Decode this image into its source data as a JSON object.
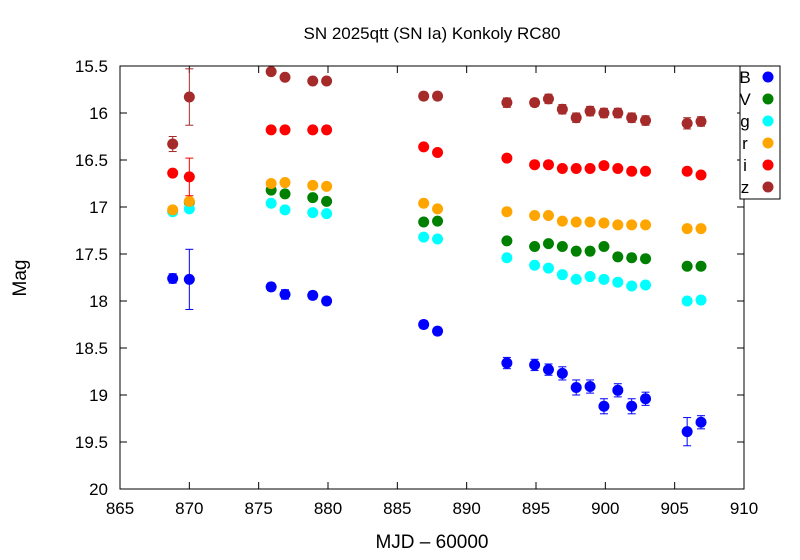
{
  "chart_data": {
    "type": "scatter",
    "title": "SN 2025qtt (SN Ia) Konkoly RC80",
    "xlabel": "MJD – 60000",
    "ylabel": "Mag",
    "xlim": [
      865,
      910
    ],
    "ylim": [
      15.5,
      20
    ],
    "y_inverted": true,
    "grid": false,
    "legend_position": "right",
    "x_ticks": [
      865,
      870,
      875,
      880,
      885,
      890,
      895,
      900,
      905,
      910
    ],
    "x_tick_labels": [
      "865",
      "870",
      "875",
      "880",
      "885",
      "890",
      "895",
      "900",
      "905",
      "910"
    ],
    "y_ticks": [
      15.5,
      16,
      16.5,
      17,
      17.5,
      18,
      18.5,
      19,
      19.5,
      20
    ],
    "y_tick_labels": [
      "15.5",
      "16",
      "16.5",
      "17",
      "17.5",
      "18",
      "18.5",
      "19",
      "19.5",
      "20"
    ],
    "series": [
      {
        "name": "B",
        "color": "#0000ff",
        "points": [
          {
            "x": 868.8,
            "y": 17.76,
            "err": 0.05
          },
          {
            "x": 870.0,
            "y": 17.77,
            "err": 0.32
          },
          {
            "x": 875.9,
            "y": 17.85,
            "err": 0.04
          },
          {
            "x": 876.9,
            "y": 17.93,
            "err": 0.05
          },
          {
            "x": 878.9,
            "y": 17.94,
            "err": 0.04
          },
          {
            "x": 879.9,
            "y": 18.0,
            "err": 0.04
          },
          {
            "x": 886.9,
            "y": 18.25,
            "err": 0.04
          },
          {
            "x": 887.9,
            "y": 18.32,
            "err": 0.04
          },
          {
            "x": 892.9,
            "y": 18.66,
            "err": 0.06
          },
          {
            "x": 894.9,
            "y": 18.68,
            "err": 0.06
          },
          {
            "x": 895.9,
            "y": 18.73,
            "err": 0.06
          },
          {
            "x": 896.9,
            "y": 18.77,
            "err": 0.07
          },
          {
            "x": 897.9,
            "y": 18.92,
            "err": 0.08
          },
          {
            "x": 898.9,
            "y": 18.91,
            "err": 0.07
          },
          {
            "x": 899.9,
            "y": 19.12,
            "err": 0.08
          },
          {
            "x": 900.9,
            "y": 18.95,
            "err": 0.07
          },
          {
            "x": 901.9,
            "y": 19.12,
            "err": 0.08
          },
          {
            "x": 902.9,
            "y": 19.04,
            "err": 0.07
          },
          {
            "x": 905.9,
            "y": 19.39,
            "err": 0.15
          },
          {
            "x": 906.9,
            "y": 19.29,
            "err": 0.07
          }
        ]
      },
      {
        "name": "V",
        "color": "#008000",
        "points": [
          {
            "x": 870.0,
            "y": 16.95,
            "err": 0.03
          },
          {
            "x": 875.9,
            "y": 16.82,
            "err": 0.02
          },
          {
            "x": 876.9,
            "y": 16.86,
            "err": 0.02
          },
          {
            "x": 878.9,
            "y": 16.9,
            "err": 0.02
          },
          {
            "x": 879.9,
            "y": 16.94,
            "err": 0.02
          },
          {
            "x": 886.9,
            "y": 17.16,
            "err": 0.02
          },
          {
            "x": 887.9,
            "y": 17.15,
            "err": 0.02
          },
          {
            "x": 892.9,
            "y": 17.36,
            "err": 0.02
          },
          {
            "x": 894.9,
            "y": 17.42,
            "err": 0.02
          },
          {
            "x": 895.9,
            "y": 17.39,
            "err": 0.02
          },
          {
            "x": 896.9,
            "y": 17.42,
            "err": 0.02
          },
          {
            "x": 897.9,
            "y": 17.47,
            "err": 0.02
          },
          {
            "x": 898.9,
            "y": 17.47,
            "err": 0.02
          },
          {
            "x": 899.9,
            "y": 17.42,
            "err": 0.02
          },
          {
            "x": 900.9,
            "y": 17.53,
            "err": 0.02
          },
          {
            "x": 901.9,
            "y": 17.54,
            "err": 0.02
          },
          {
            "x": 902.9,
            "y": 17.55,
            "err": 0.02
          },
          {
            "x": 905.9,
            "y": 17.63,
            "err": 0.03
          },
          {
            "x": 906.9,
            "y": 17.63,
            "err": 0.03
          }
        ]
      },
      {
        "name": "g",
        "color": "#00ffff",
        "points": [
          {
            "x": 868.8,
            "y": 17.05,
            "err": 0.02
          },
          {
            "x": 870.0,
            "y": 17.02,
            "err": 0.03
          },
          {
            "x": 875.9,
            "y": 16.96,
            "err": 0.02
          },
          {
            "x": 876.9,
            "y": 17.03,
            "err": 0.02
          },
          {
            "x": 878.9,
            "y": 17.06,
            "err": 0.02
          },
          {
            "x": 879.9,
            "y": 17.07,
            "err": 0.02
          },
          {
            "x": 886.9,
            "y": 17.32,
            "err": 0.02
          },
          {
            "x": 887.9,
            "y": 17.34,
            "err": 0.02
          },
          {
            "x": 892.9,
            "y": 17.54,
            "err": 0.02
          },
          {
            "x": 894.9,
            "y": 17.62,
            "err": 0.02
          },
          {
            "x": 895.9,
            "y": 17.65,
            "err": 0.02
          },
          {
            "x": 896.9,
            "y": 17.72,
            "err": 0.02
          },
          {
            "x": 897.9,
            "y": 17.77,
            "err": 0.02
          },
          {
            "x": 898.9,
            "y": 17.74,
            "err": 0.02
          },
          {
            "x": 899.9,
            "y": 17.77,
            "err": 0.02
          },
          {
            "x": 900.9,
            "y": 17.8,
            "err": 0.02
          },
          {
            "x": 901.9,
            "y": 17.84,
            "err": 0.02
          },
          {
            "x": 902.9,
            "y": 17.83,
            "err": 0.02
          },
          {
            "x": 905.9,
            "y": 18.0,
            "err": 0.02
          },
          {
            "x": 906.9,
            "y": 17.99,
            "err": 0.02
          }
        ]
      },
      {
        "name": "r",
        "color": "#ffa500",
        "points": [
          {
            "x": 868.8,
            "y": 17.03,
            "err": 0.02
          },
          {
            "x": 870.0,
            "y": 16.94,
            "err": 0.03
          },
          {
            "x": 875.9,
            "y": 16.75,
            "err": 0.02
          },
          {
            "x": 876.9,
            "y": 16.74,
            "err": 0.02
          },
          {
            "x": 878.9,
            "y": 16.77,
            "err": 0.02
          },
          {
            "x": 879.9,
            "y": 16.78,
            "err": 0.02
          },
          {
            "x": 886.9,
            "y": 16.96,
            "err": 0.02
          },
          {
            "x": 887.9,
            "y": 17.02,
            "err": 0.02
          },
          {
            "x": 892.9,
            "y": 17.05,
            "err": 0.02
          },
          {
            "x": 894.9,
            "y": 17.09,
            "err": 0.02
          },
          {
            "x": 895.9,
            "y": 17.09,
            "err": 0.02
          },
          {
            "x": 896.9,
            "y": 17.15,
            "err": 0.02
          },
          {
            "x": 897.9,
            "y": 17.16,
            "err": 0.02
          },
          {
            "x": 898.9,
            "y": 17.16,
            "err": 0.02
          },
          {
            "x": 899.9,
            "y": 17.17,
            "err": 0.02
          },
          {
            "x": 900.9,
            "y": 17.19,
            "err": 0.02
          },
          {
            "x": 901.9,
            "y": 17.19,
            "err": 0.02
          },
          {
            "x": 902.9,
            "y": 17.19,
            "err": 0.02
          },
          {
            "x": 905.9,
            "y": 17.23,
            "err": 0.02
          },
          {
            "x": 906.9,
            "y": 17.23,
            "err": 0.02
          }
        ]
      },
      {
        "name": "i",
        "color": "#ff0000",
        "points": [
          {
            "x": 868.8,
            "y": 16.64,
            "err": 0.03
          },
          {
            "x": 870.0,
            "y": 16.68,
            "err": 0.2
          },
          {
            "x": 875.9,
            "y": 16.18,
            "err": 0.02
          },
          {
            "x": 876.9,
            "y": 16.18,
            "err": 0.02
          },
          {
            "x": 878.9,
            "y": 16.18,
            "err": 0.02
          },
          {
            "x": 879.9,
            "y": 16.18,
            "err": 0.02
          },
          {
            "x": 886.9,
            "y": 16.36,
            "err": 0.02
          },
          {
            "x": 887.9,
            "y": 16.42,
            "err": 0.02
          },
          {
            "x": 892.9,
            "y": 16.48,
            "err": 0.02
          },
          {
            "x": 894.9,
            "y": 16.55,
            "err": 0.02
          },
          {
            "x": 895.9,
            "y": 16.55,
            "err": 0.02
          },
          {
            "x": 896.9,
            "y": 16.59,
            "err": 0.02
          },
          {
            "x": 897.9,
            "y": 16.59,
            "err": 0.02
          },
          {
            "x": 898.9,
            "y": 16.59,
            "err": 0.02
          },
          {
            "x": 899.9,
            "y": 16.56,
            "err": 0.02
          },
          {
            "x": 900.9,
            "y": 16.59,
            "err": 0.02
          },
          {
            "x": 901.9,
            "y": 16.62,
            "err": 0.02
          },
          {
            "x": 902.9,
            "y": 16.62,
            "err": 0.02
          },
          {
            "x": 905.9,
            "y": 16.62,
            "err": 0.02
          },
          {
            "x": 906.9,
            "y": 16.66,
            "err": 0.02
          }
        ]
      },
      {
        "name": "z",
        "color": "#a52a2a",
        "points": [
          {
            "x": 868.8,
            "y": 16.33,
            "err": 0.08
          },
          {
            "x": 870.0,
            "y": 15.83,
            "err": 0.3
          },
          {
            "x": 875.9,
            "y": 15.56,
            "err": 0.02
          },
          {
            "x": 876.9,
            "y": 15.62,
            "err": 0.02
          },
          {
            "x": 878.9,
            "y": 15.66,
            "err": 0.02
          },
          {
            "x": 879.9,
            "y": 15.66,
            "err": 0.02
          },
          {
            "x": 886.9,
            "y": 15.82,
            "err": 0.04
          },
          {
            "x": 887.9,
            "y": 15.82,
            "err": 0.04
          },
          {
            "x": 892.9,
            "y": 15.89,
            "err": 0.05
          },
          {
            "x": 894.9,
            "y": 15.89,
            "err": 0.04
          },
          {
            "x": 895.9,
            "y": 15.85,
            "err": 0.05
          },
          {
            "x": 896.9,
            "y": 15.96,
            "err": 0.05
          },
          {
            "x": 897.9,
            "y": 16.05,
            "err": 0.05
          },
          {
            "x": 898.9,
            "y": 15.98,
            "err": 0.05
          },
          {
            "x": 899.9,
            "y": 16.0,
            "err": 0.05
          },
          {
            "x": 900.9,
            "y": 16.0,
            "err": 0.05
          },
          {
            "x": 901.9,
            "y": 16.05,
            "err": 0.05
          },
          {
            "x": 902.9,
            "y": 16.08,
            "err": 0.05
          },
          {
            "x": 905.9,
            "y": 16.11,
            "err": 0.06
          },
          {
            "x": 906.9,
            "y": 16.09,
            "err": 0.05
          }
        ]
      }
    ]
  }
}
